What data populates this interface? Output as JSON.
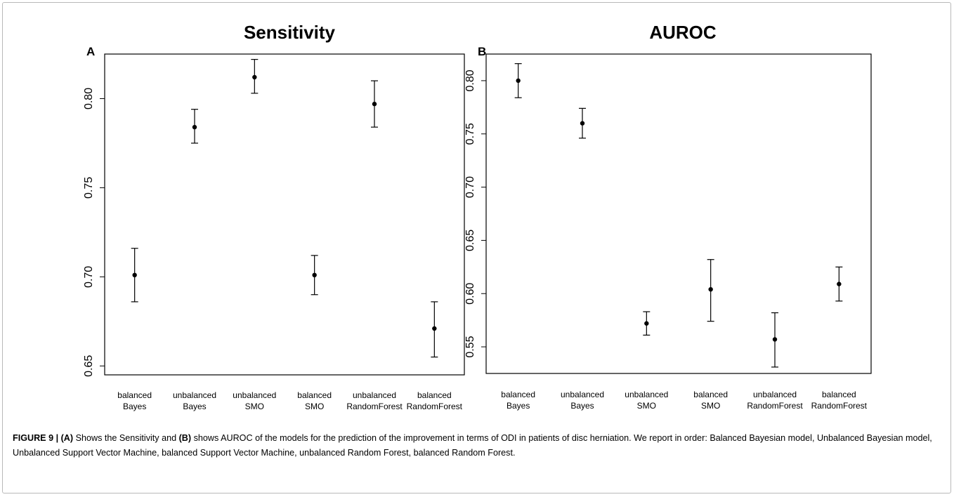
{
  "caption": {
    "figure_label": "FIGURE 9 |",
    "ref_a": "(A)",
    "text_1": " Shows the Sensitivity and ",
    "ref_b": "(B)",
    "text_2": " shows AUROC of the models for the prediction of the improvement in terms of ODI in patients of disc herniation. We report in order: Balanced Bayesian model, Unbalanced Bayesian model, Unbalanced Support Vector Machine, balanced Support Vector Machine, unbalanced Random Forest, balanced Random Forest."
  },
  "chart_data": [
    {
      "type": "scatter",
      "panel_label": "A",
      "title": "Sensitivity",
      "xlabel": "",
      "ylabel": "",
      "grid": false,
      "ylim": [
        0.645,
        0.825
      ],
      "yticks": [
        "0.65",
        "0.70",
        "0.75",
        "0.80"
      ],
      "categories": [
        [
          "balanced",
          "Bayes"
        ],
        [
          "unbalanced",
          "Bayes"
        ],
        [
          "unbalanced",
          "SMO"
        ],
        [
          "balanced",
          "SMO"
        ],
        [
          "unbalanced",
          "RandomForest"
        ],
        [
          "balanced",
          "RandomForest"
        ]
      ],
      "values": [
        0.701,
        0.784,
        0.812,
        0.701,
        0.797,
        0.671
      ],
      "error_low": [
        0.686,
        0.775,
        0.803,
        0.69,
        0.784,
        0.655
      ],
      "error_high": [
        0.716,
        0.794,
        0.822,
        0.712,
        0.81,
        0.686
      ]
    },
    {
      "type": "scatter",
      "panel_label": "B",
      "title": "AUROC",
      "xlabel": "",
      "ylabel": "",
      "grid": false,
      "ylim": [
        0.525,
        0.825
      ],
      "yticks": [
        "0.55",
        "0.60",
        "0.65",
        "0.70",
        "0.75",
        "0.80"
      ],
      "categories": [
        [
          "balanced",
          "Bayes"
        ],
        [
          "unbalanced",
          "Bayes"
        ],
        [
          "unbalanced",
          "SMO"
        ],
        [
          "balanced",
          "SMO"
        ],
        [
          "unbalanced",
          "RandomForest"
        ],
        [
          "balanced",
          "RandomForest"
        ]
      ],
      "values": [
        0.8,
        0.76,
        0.572,
        0.604,
        0.557,
        0.609
      ],
      "error_low": [
        0.784,
        0.746,
        0.561,
        0.574,
        0.531,
        0.593
      ],
      "error_high": [
        0.816,
        0.774,
        0.583,
        0.632,
        0.582,
        0.625
      ]
    }
  ]
}
